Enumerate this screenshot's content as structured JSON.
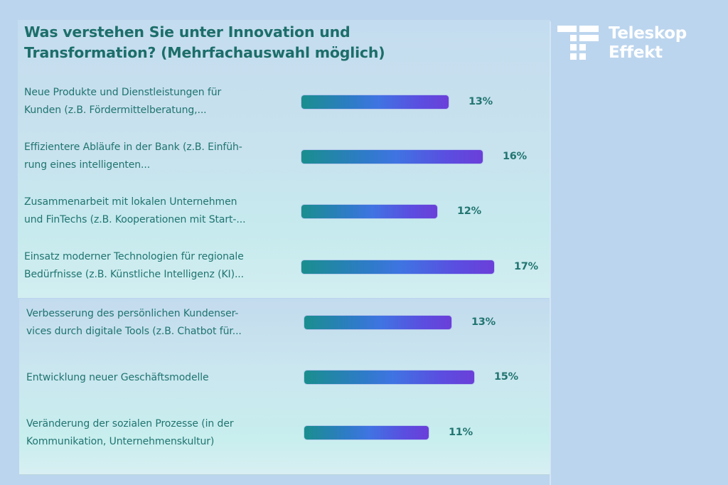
{
  "brand": {
    "logo_icon": "teleskop-effekt-logo-icon",
    "line1": "Teleskop",
    "line2": "Effekt"
  },
  "colors": {
    "background": "#bcd5ee",
    "text": "#1f7470",
    "bar_gradient_start": "#1a8e8e",
    "bar_gradient_mid": "#3f74e2",
    "bar_gradient_end": "#6b3fd9",
    "logo": "#ffffff"
  },
  "chart_data": {
    "type": "bar",
    "orientation": "horizontal",
    "title": "Was verstehen Sie unter Innovation und Transformation? (Mehrfachauswahl möglich)",
    "xlabel": "",
    "ylabel": "",
    "unit": "%",
    "categories": [
      "Neue Produkte und Dienstleistungen für Kunden (z.B. Fördermittelberatung,...",
      "Effizientere Abläufe in der Bank (z.B. Einführung eines intelligenten...",
      "Zusammenarbeit mit lokalen Unternehmen und FinTechs (z.B. Kooperationen mit Start-...",
      "Einsatz moderner Technologien für regionale Bedürfnisse (z.B. Künstliche Intelligenz (KI)...",
      "Verbesserung des persönlichen Kundenservices durch digitale Tools (z.B. Chatbot für...",
      "Entwicklung neuer Geschäftsmodelle",
      "Veränderung der sozialen Prozesse (in der Kommunikation, Unternehmenskultur)"
    ],
    "values": [
      13,
      16,
      12,
      17,
      13,
      15,
      11
    ],
    "data_labels": [
      "13%",
      "16%",
      "12%",
      "17%",
      "13%",
      "15%",
      "11%"
    ],
    "grid": false,
    "legend": "none"
  },
  "rows": [
    {
      "label_lines": [
        "Neue Produkte und Dienstleistungen für",
        "Kunden (z.B. Fördermittelberatung,..."
      ],
      "value_label": "13%"
    },
    {
      "label_lines": [
        "Effizientere Abläufe in der Bank (z.B. Einfüh-",
        "rung eines intelligenten..."
      ],
      "value_label": "16%"
    },
    {
      "label_lines": [
        "Zusammenarbeit mit lokalen Unternehmen",
        "und FinTechs (z.B. Kooperationen mit Start-..."
      ],
      "value_label": "12%"
    },
    {
      "label_lines": [
        "Einsatz moderner Technologien für regionale",
        "Bedürfnisse (z.B. Künstliche Intelligenz (KI)..."
      ],
      "value_label": "17%"
    },
    {
      "label_lines": [
        "Verbesserung des persönlichen Kundenser-",
        "vices durch digitale Tools (z.B. Chatbot für..."
      ],
      "value_label": "13%"
    },
    {
      "label_lines": [
        "Entwicklung neuer Geschäftsmodelle"
      ],
      "value_label": "15%"
    },
    {
      "label_lines": [
        "Veränderung der sozialen Prozesse (in der",
        "Kommunikation, Unternehmenskultur)"
      ],
      "value_label": "11%"
    }
  ],
  "title_lines": [
    "Was verstehen Sie unter Innovation und",
    "Transformation? (Mehrfachauswahl möglich)"
  ]
}
